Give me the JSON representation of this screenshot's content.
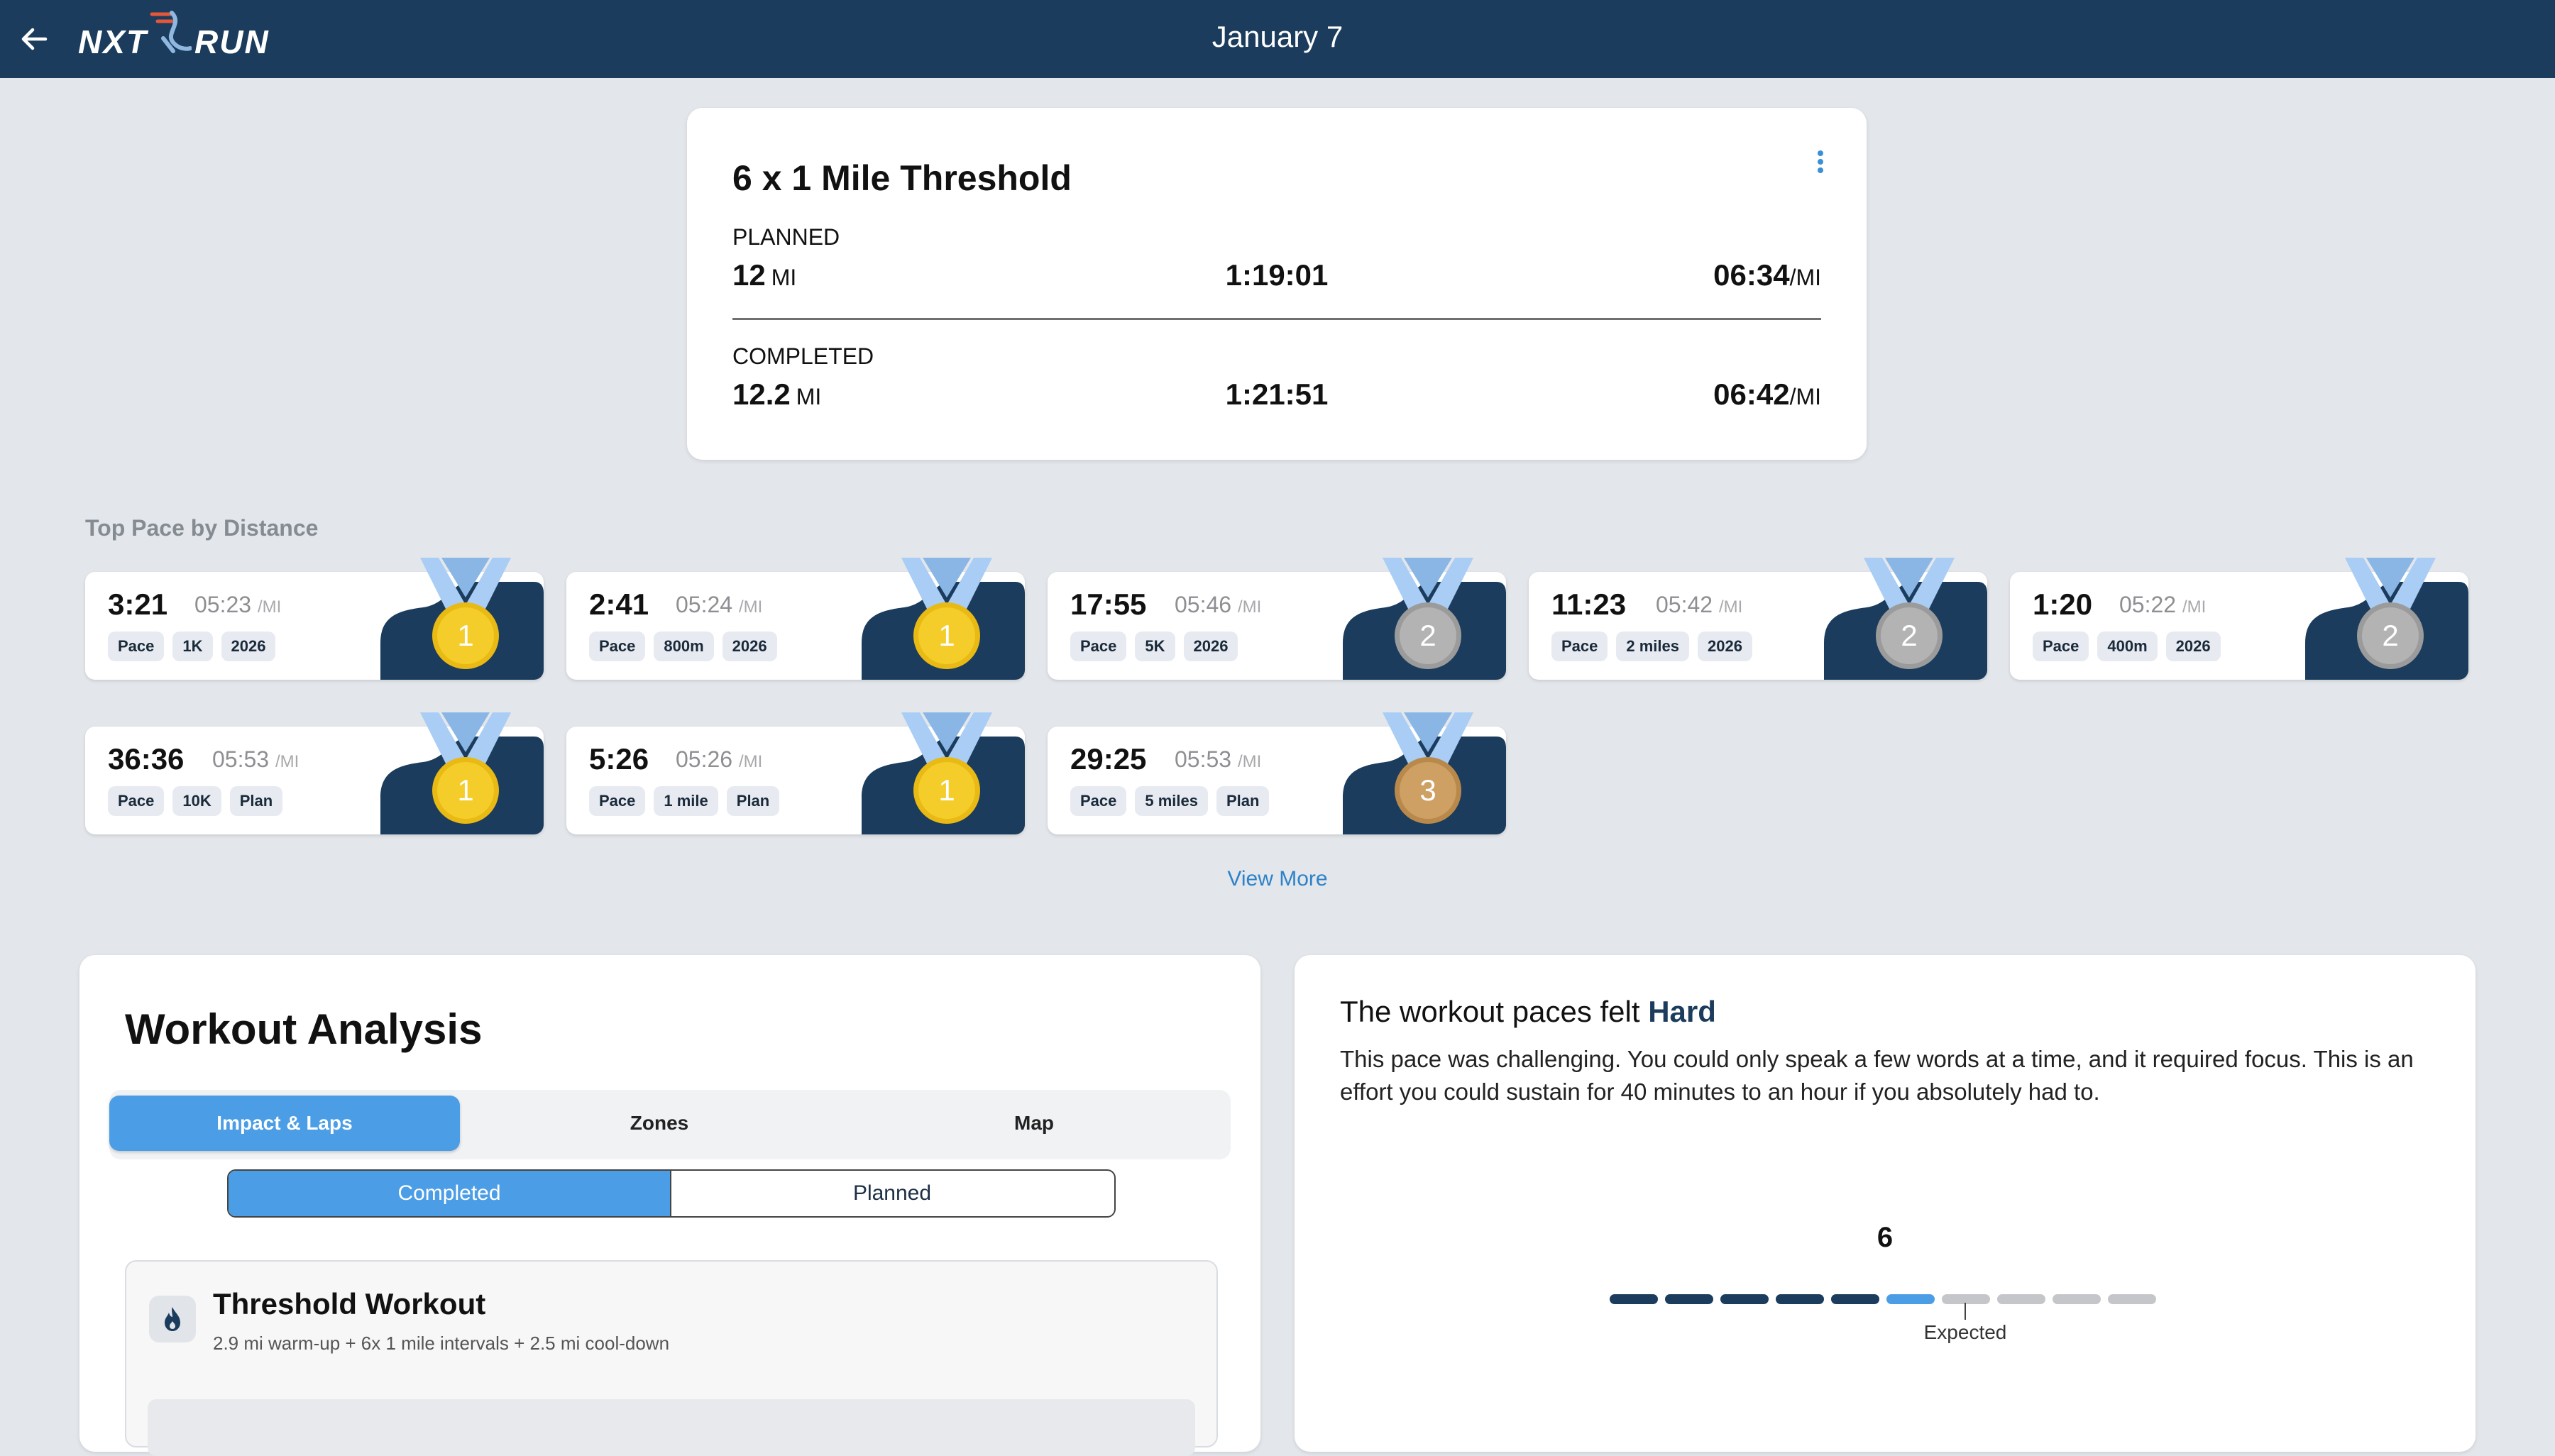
{
  "header": {
    "title": "January 7",
    "logo_left": "NXT",
    "logo_right": "RUN"
  },
  "workout": {
    "title": "6 x 1 Mile Threshold",
    "planned": {
      "label": "PLANNED",
      "distance": "12",
      "distance_unit": "MI",
      "time": "1:19:01",
      "pace": "06:34",
      "pace_unit": "/MI"
    },
    "completed": {
      "label": "COMPLETED",
      "distance": "12.2",
      "distance_unit": "MI",
      "time": "1:21:51",
      "pace": "06:42",
      "pace_unit": "/MI"
    }
  },
  "top_pace": {
    "heading": "Top Pace by Distance",
    "view_more": "View More",
    "cards": [
      {
        "time": "3:21",
        "pace": "05:23",
        "pace_unit": "/MI",
        "tags": [
          "Pace",
          "1K",
          "2026"
        ],
        "medal": "1",
        "medal_type": "gold"
      },
      {
        "time": "2:41",
        "pace": "05:24",
        "pace_unit": "/MI",
        "tags": [
          "Pace",
          "800m",
          "2026"
        ],
        "medal": "1",
        "medal_type": "gold"
      },
      {
        "time": "17:55",
        "pace": "05:46",
        "pace_unit": "/MI",
        "tags": [
          "Pace",
          "5K",
          "2026"
        ],
        "medal": "2",
        "medal_type": "silver"
      },
      {
        "time": "11:23",
        "pace": "05:42",
        "pace_unit": "/MI",
        "tags": [
          "Pace",
          "2 miles",
          "2026"
        ],
        "medal": "2",
        "medal_type": "silver"
      },
      {
        "time": "1:20",
        "pace": "05:22",
        "pace_unit": "/MI",
        "tags": [
          "Pace",
          "400m",
          "2026"
        ],
        "medal": "2",
        "medal_type": "silver"
      },
      {
        "time": "36:36",
        "pace": "05:53",
        "pace_unit": "/MI",
        "tags": [
          "Pace",
          "10K",
          "Plan"
        ],
        "medal": "1",
        "medal_type": "gold"
      },
      {
        "time": "5:26",
        "pace": "05:26",
        "pace_unit": "/MI",
        "tags": [
          "Pace",
          "1 mile",
          "Plan"
        ],
        "medal": "1",
        "medal_type": "gold"
      },
      {
        "time": "29:25",
        "pace": "05:53",
        "pace_unit": "/MI",
        "tags": [
          "Pace",
          "5 miles",
          "Plan"
        ],
        "medal": "3",
        "medal_type": "bronze"
      }
    ]
  },
  "analysis": {
    "title": "Workout Analysis",
    "tabs": [
      "Impact & Laps",
      "Zones",
      "Map"
    ],
    "active_tab": "Impact & Laps",
    "toggle": [
      "Completed",
      "Planned"
    ],
    "active_toggle": "Completed",
    "segment": {
      "title": "Threshold Workout",
      "subtitle": "2.9 mi warm-up + 6x 1 mile intervals + 2.5 mi cool-down",
      "icon": "flame-icon"
    }
  },
  "feel": {
    "title_prefix": "The workout paces felt",
    "level": "Hard",
    "description": "This pace was challenging. You could only speak a few words at a time, and it required focus. This is an effort you could sustain for 40 minutes to an hour if you absolutely had to.",
    "value": "6",
    "value_num": 6,
    "scale_max": 10,
    "expected_value": 7,
    "expected_label": "Expected"
  },
  "colors": {
    "navy": "#1b3c5c",
    "accent_blue": "#4b9de6",
    "gold": "#f4cd2a",
    "silver": "#b3b3b3",
    "bronze": "#cfa063",
    "ribbon": "#a9cdf4"
  }
}
